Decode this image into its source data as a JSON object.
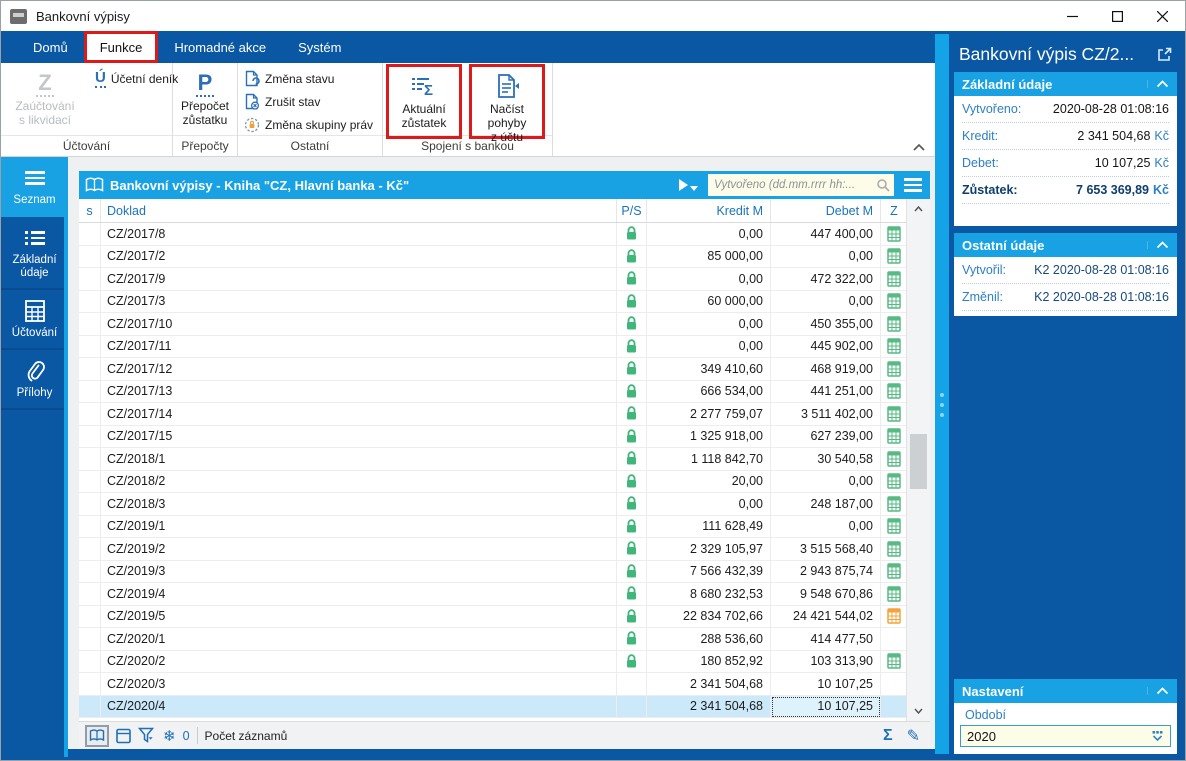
{
  "window": {
    "title": "Bankovní výpisy"
  },
  "tabs": [
    {
      "label": "Domů"
    },
    {
      "label": "Funkce"
    },
    {
      "label": "Hromadné akce"
    },
    {
      "label": "Systém"
    }
  ],
  "ribbon": {
    "uctovani": {
      "group_label": "Účtování",
      "big_button": {
        "icon_letter": "Z",
        "line1": "Zaúčtování",
        "line2": "s likvidací"
      },
      "small_button": {
        "icon_letter": "Ú",
        "label": "Účetní deník"
      }
    },
    "prepocty": {
      "group_label": "Přepočty",
      "big_button": {
        "icon_letter": "P",
        "line1": "Přepočet",
        "line2": "zůstatku"
      }
    },
    "ostatni": {
      "group_label": "Ostatní",
      "buttons": [
        {
          "label": "Změna stavu"
        },
        {
          "label": "Zrušit stav"
        },
        {
          "label": "Změna skupiny práv"
        }
      ]
    },
    "spojeni": {
      "group_label": "Spojení s bankou",
      "buttons": [
        {
          "line1": "Aktuální",
          "line2": "zůstatek"
        },
        {
          "line1": "Načíst pohyby",
          "line2": "z účtu"
        }
      ]
    }
  },
  "sidebar": {
    "items": [
      {
        "label": "Seznam"
      },
      {
        "label": "Základní údaje"
      },
      {
        "label": "Účtování"
      },
      {
        "label": "Přílohy"
      }
    ]
  },
  "table": {
    "title": "Bankovní výpisy - Kniha \"CZ, Hlavní banka - Kč\"",
    "search_placeholder": "Vytvořeno (dd.mm.rrrr hh:...",
    "columns": {
      "s": "s",
      "doklad": "Doklad",
      "ps": "P/S",
      "kredit": "Kredit M",
      "debet": "Debet M",
      "z": "Z"
    },
    "rows": [
      {
        "doklad": "CZ/2017/8",
        "lock": true,
        "kredit": "0,00",
        "debet": "447 400,00",
        "calc": "green"
      },
      {
        "doklad": "CZ/2017/2",
        "lock": true,
        "kredit": "85 000,00",
        "debet": "0,00",
        "calc": "green"
      },
      {
        "doklad": "CZ/2017/9",
        "lock": true,
        "kredit": "0,00",
        "debet": "472 322,00",
        "calc": "green"
      },
      {
        "doklad": "CZ/2017/3",
        "lock": true,
        "kredit": "60 000,00",
        "debet": "0,00",
        "calc": "green"
      },
      {
        "doklad": "CZ/2017/10",
        "lock": true,
        "kredit": "0,00",
        "debet": "450 355,00",
        "calc": "green"
      },
      {
        "doklad": "CZ/2017/11",
        "lock": true,
        "kredit": "0,00",
        "debet": "445 902,00",
        "calc": "green"
      },
      {
        "doklad": "CZ/2017/12",
        "lock": true,
        "kredit": "349 410,60",
        "debet": "468 919,00",
        "calc": "green"
      },
      {
        "doklad": "CZ/2017/13",
        "lock": true,
        "kredit": "666 534,00",
        "debet": "441 251,00",
        "calc": "green"
      },
      {
        "doklad": "CZ/2017/14",
        "lock": true,
        "kredit": "2 277 759,07",
        "debet": "3 511 402,00",
        "calc": "green"
      },
      {
        "doklad": "CZ/2017/15",
        "lock": true,
        "kredit": "1 325 918,00",
        "debet": "627 239,00",
        "calc": "green"
      },
      {
        "doklad": "CZ/2018/1",
        "lock": true,
        "kredit": "1 118 842,70",
        "debet": "30 540,58",
        "calc": "green"
      },
      {
        "doklad": "CZ/2018/2",
        "lock": true,
        "kredit": "20,00",
        "debet": "0,00",
        "calc": "green"
      },
      {
        "doklad": "CZ/2018/3",
        "lock": true,
        "kredit": "0,00",
        "debet": "248 187,00",
        "calc": "green"
      },
      {
        "doklad": "CZ/2019/1",
        "lock": true,
        "kredit": "111 628,49",
        "debet": "0,00",
        "calc": "green"
      },
      {
        "doklad": "CZ/2019/2",
        "lock": true,
        "kredit": "2 329 105,97",
        "debet": "3 515 568,40",
        "calc": "green"
      },
      {
        "doklad": "CZ/2019/3",
        "lock": true,
        "kredit": "7 566 432,39",
        "debet": "2 943 875,74",
        "calc": "green"
      },
      {
        "doklad": "CZ/2019/4",
        "lock": true,
        "kredit": "8 680 232,53",
        "debet": "9 548 670,86",
        "calc": "green"
      },
      {
        "doklad": "CZ/2019/5",
        "lock": true,
        "kredit": "22 834 702,66",
        "debet": "24 421 544,02",
        "calc": "orange"
      },
      {
        "doklad": "CZ/2020/1",
        "lock": true,
        "kredit": "288 536,60",
        "debet": "414 477,50",
        "calc": "none"
      },
      {
        "doklad": "CZ/2020/2",
        "lock": true,
        "kredit": "180 852,92",
        "debet": "103 313,90",
        "calc": "green"
      },
      {
        "doklad": "CZ/2020/3",
        "lock": false,
        "kredit": "2 341 504,68",
        "debet": "10 107,25",
        "calc": "none"
      },
      {
        "doklad": "CZ/2020/4",
        "lock": false,
        "kredit": "2 341 504,68",
        "debet": "10 107,25",
        "calc": "none",
        "selected": true
      }
    ]
  },
  "status_bar": {
    "count_value": "0",
    "count_label": "Počet záznamů",
    "sigma": "Σ",
    "pencil": "✎",
    "snowflake": "❄"
  },
  "right_panel": {
    "title": "Bankovní výpis CZ/2...",
    "zakladni": {
      "title": "Základní údaje",
      "fields": [
        {
          "label": "Vytvořeno:",
          "value": "2020-08-28 01:08:16",
          "suffix": ""
        },
        {
          "label": "Kredit:",
          "value": "2 341 504,68",
          "suffix": "Kč"
        },
        {
          "label": "Debet:",
          "value": "10 107,25",
          "suffix": "Kč"
        },
        {
          "label": "Zůstatek:",
          "value": "7 653 369,89",
          "suffix": "Kč"
        }
      ]
    },
    "ostatni": {
      "title": "Ostatní údaje",
      "fields": [
        {
          "label": "Vytvořil:",
          "value": "K2 2020-08-28 01:08:16"
        },
        {
          "label": "Změnil:",
          "value": "K2 2020-08-28 01:08:16"
        }
      ]
    },
    "nastaveni": {
      "title": "Nastavení",
      "field_label": "Období",
      "field_value": "2020"
    }
  },
  "colors": {
    "dark_blue": "#0a57a4",
    "light_blue": "#18a2e3",
    "selection": "#cbe9f8",
    "lock_green": "#3fb77b",
    "calc_green": "#56ba83",
    "calc_orange": "#f2a33c",
    "annotation_red": "#dd1a1a",
    "input_yellow": "#fdfce8"
  }
}
